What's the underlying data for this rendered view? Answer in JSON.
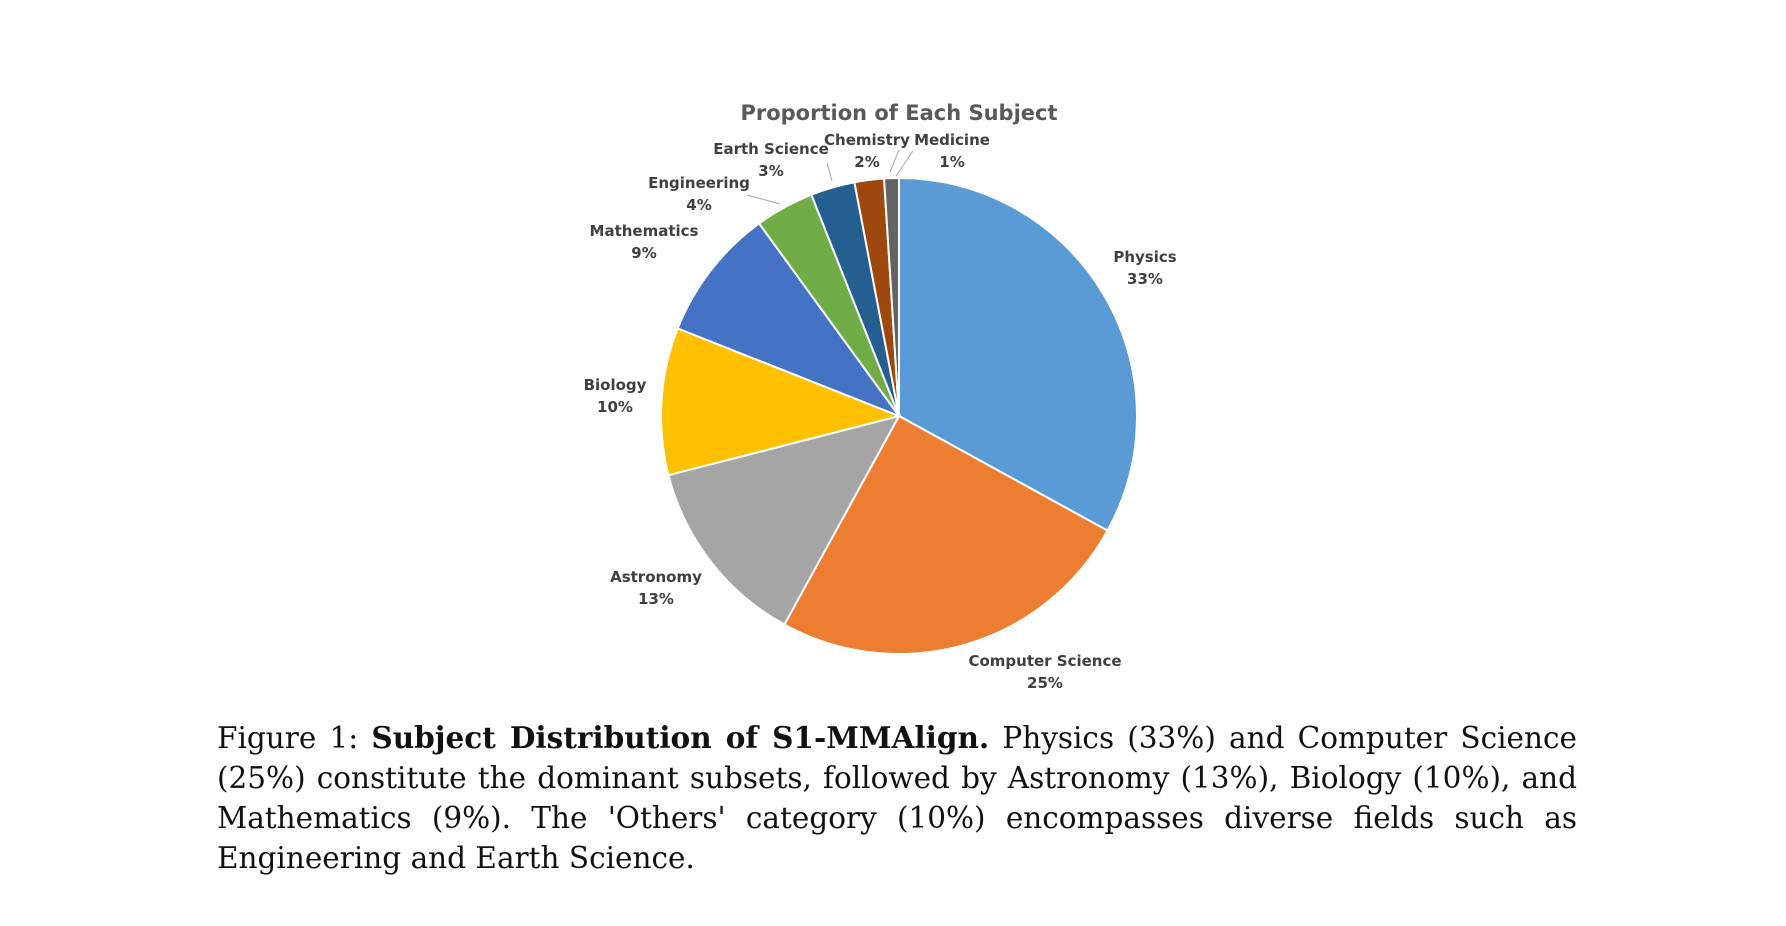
{
  "chart_data": {
    "type": "pie",
    "title": "Proportion of Each Subject",
    "slices": [
      {
        "label": "Physics",
        "value": 33,
        "value_label": "33%",
        "color": "#5B9BD5"
      },
      {
        "label": "Computer Science",
        "value": 25,
        "value_label": "25%",
        "color": "#ED7D31"
      },
      {
        "label": "Astronomy",
        "value": 13,
        "value_label": "13%",
        "color": "#A5A5A5"
      },
      {
        "label": "Biology",
        "value": 10,
        "value_label": "10%",
        "color": "#FFC000"
      },
      {
        "label": "Mathematics",
        "value": 9,
        "value_label": "9%",
        "color": "#4472C4"
      },
      {
        "label": "Engineering",
        "value": 4,
        "value_label": "4%",
        "color": "#70AD47"
      },
      {
        "label": "Earth Science",
        "value": 3,
        "value_label": "3%",
        "color": "#255E91"
      },
      {
        "label": "Chemistry",
        "value": 2,
        "value_label": "2%",
        "color": "#9E480E"
      },
      {
        "label": "Medicine",
        "value": 1,
        "value_label": "1%",
        "color": "#636363"
      }
    ],
    "start": "top",
    "direction": "clockwise"
  },
  "caption": {
    "figure_label": "Figure 1:",
    "bold_title": "Subject Distribution of S1-MMAlign.",
    "text": "Physics (33%) and Computer Science (25%) constitute the dominant subsets, followed by Astronomy (13%), Biology (10%), and Mathematics (9%). The 'Others' category (10%) encompasses diverse fields such as Engineering and Earth Science."
  }
}
